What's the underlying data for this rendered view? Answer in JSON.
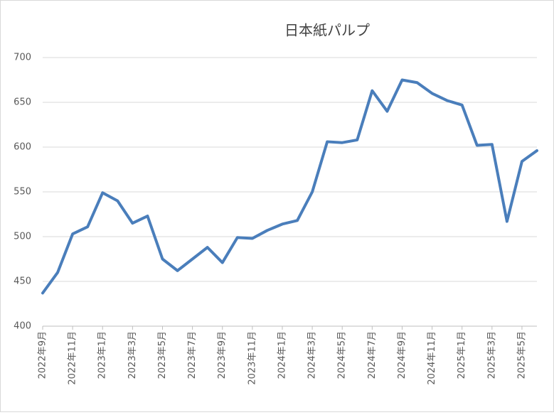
{
  "chart_data": {
    "type": "line",
    "title": "日本紙パルプ",
    "categories": [
      "2022年9月",
      null,
      "2022年11月",
      null,
      "2023年1月",
      null,
      "2023年3月",
      null,
      "2023年5月",
      null,
      "2023年7月",
      null,
      "2023年9月",
      null,
      "2023年11月",
      null,
      "2024年1月",
      null,
      "2024年3月",
      null,
      "2024年5月",
      null,
      "2024年7月",
      null,
      "2024年9月",
      null,
      "2024年11月",
      null,
      "2025年1月",
      null,
      "2025年3月",
      null,
      "2025年5月",
      null
    ],
    "series": [
      {
        "name": "日本紙パルプ",
        "color": "#4a7ebb",
        "values": [
          437,
          460,
          503,
          511,
          549,
          540,
          515,
          523,
          475,
          462,
          475,
          488,
          471,
          499,
          498,
          507,
          514,
          518,
          550,
          606,
          605,
          608,
          663,
          640,
          675,
          672,
          660,
          652,
          647,
          602,
          603,
          517,
          584,
          596
        ]
      }
    ],
    "ylim": [
      400,
      700
    ],
    "yticks": [
      400,
      450,
      500,
      550,
      600,
      650,
      700
    ],
    "grid": true
  }
}
